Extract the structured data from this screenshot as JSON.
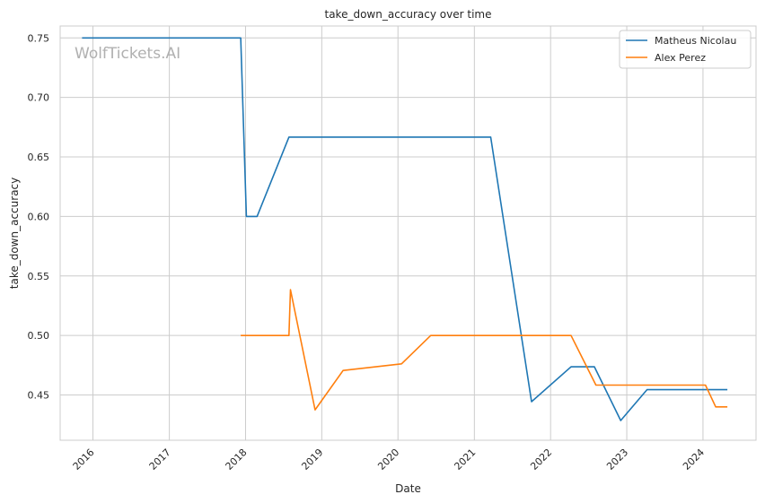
{
  "watermark": "WolfTickets.AI",
  "chart_data": {
    "type": "line",
    "title": "take_down_accuracy over time",
    "xlabel": "Date",
    "ylabel": "take_down_accuracy",
    "xlim": [
      "2015-07-28",
      "2024-09-11"
    ],
    "ylim": [
      0.412,
      0.76
    ],
    "grid": true,
    "legend": "top-right",
    "x_ticks": [
      "2016-01-01",
      "2017-01-01",
      "2018-01-01",
      "2019-01-01",
      "2020-01-01",
      "2021-01-01",
      "2022-01-01",
      "2023-01-01",
      "2024-01-01"
    ],
    "x_tick_labels": [
      "2016",
      "2017",
      "2018",
      "2019",
      "2020",
      "2021",
      "2022",
      "2023",
      "2024"
    ],
    "y_ticks": [
      0.45,
      0.5,
      0.55,
      0.6,
      0.65,
      0.7,
      0.75
    ],
    "y_tick_labels": [
      "0.45",
      "0.50",
      "0.55",
      "0.60",
      "0.65",
      "0.70",
      "0.75"
    ],
    "series": [
      {
        "name": "Matheus Nicolau",
        "color": "#1f77b4",
        "points": [
          [
            "2015-11-10",
            0.75
          ],
          [
            "2017-12-09",
            0.75
          ],
          [
            "2018-01-05",
            0.6
          ],
          [
            "2018-02-25",
            0.6
          ],
          [
            "2018-07-28",
            0.6667
          ],
          [
            "2021-03-20",
            0.6667
          ],
          [
            "2021-10-02",
            0.4444
          ],
          [
            "2022-04-09",
            0.4737
          ],
          [
            "2022-07-30",
            0.4737
          ],
          [
            "2022-12-03",
            0.4286
          ],
          [
            "2023-04-08",
            0.4545
          ],
          [
            "2024-04-27",
            0.4545
          ]
        ]
      },
      {
        "name": "Alex Perez",
        "color": "#ff7f0e",
        "points": [
          [
            "2017-12-09",
            0.5
          ],
          [
            "2018-07-28",
            0.5
          ],
          [
            "2018-08-04",
            0.5385
          ],
          [
            "2018-11-30",
            0.4375
          ],
          [
            "2019-04-13",
            0.4706
          ],
          [
            "2020-01-18",
            0.4762
          ],
          [
            "2020-06-06",
            0.5
          ],
          [
            "2022-04-09",
            0.5
          ],
          [
            "2022-08-06",
            0.4583
          ],
          [
            "2024-01-13",
            0.4583
          ],
          [
            "2024-03-02",
            0.44
          ],
          [
            "2024-04-27",
            0.44
          ]
        ]
      }
    ]
  }
}
